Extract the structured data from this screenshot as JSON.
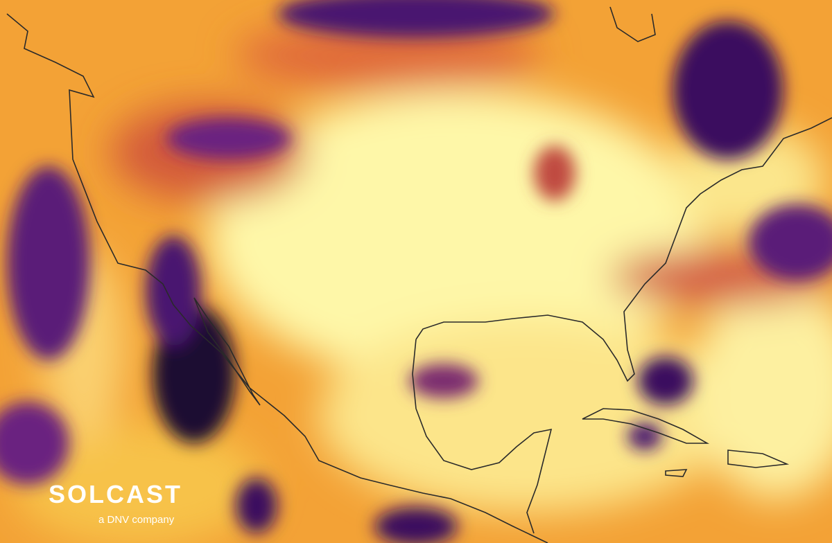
{
  "logo": {
    "name": "SOLCAST",
    "tagline": "a DNV company"
  }
}
